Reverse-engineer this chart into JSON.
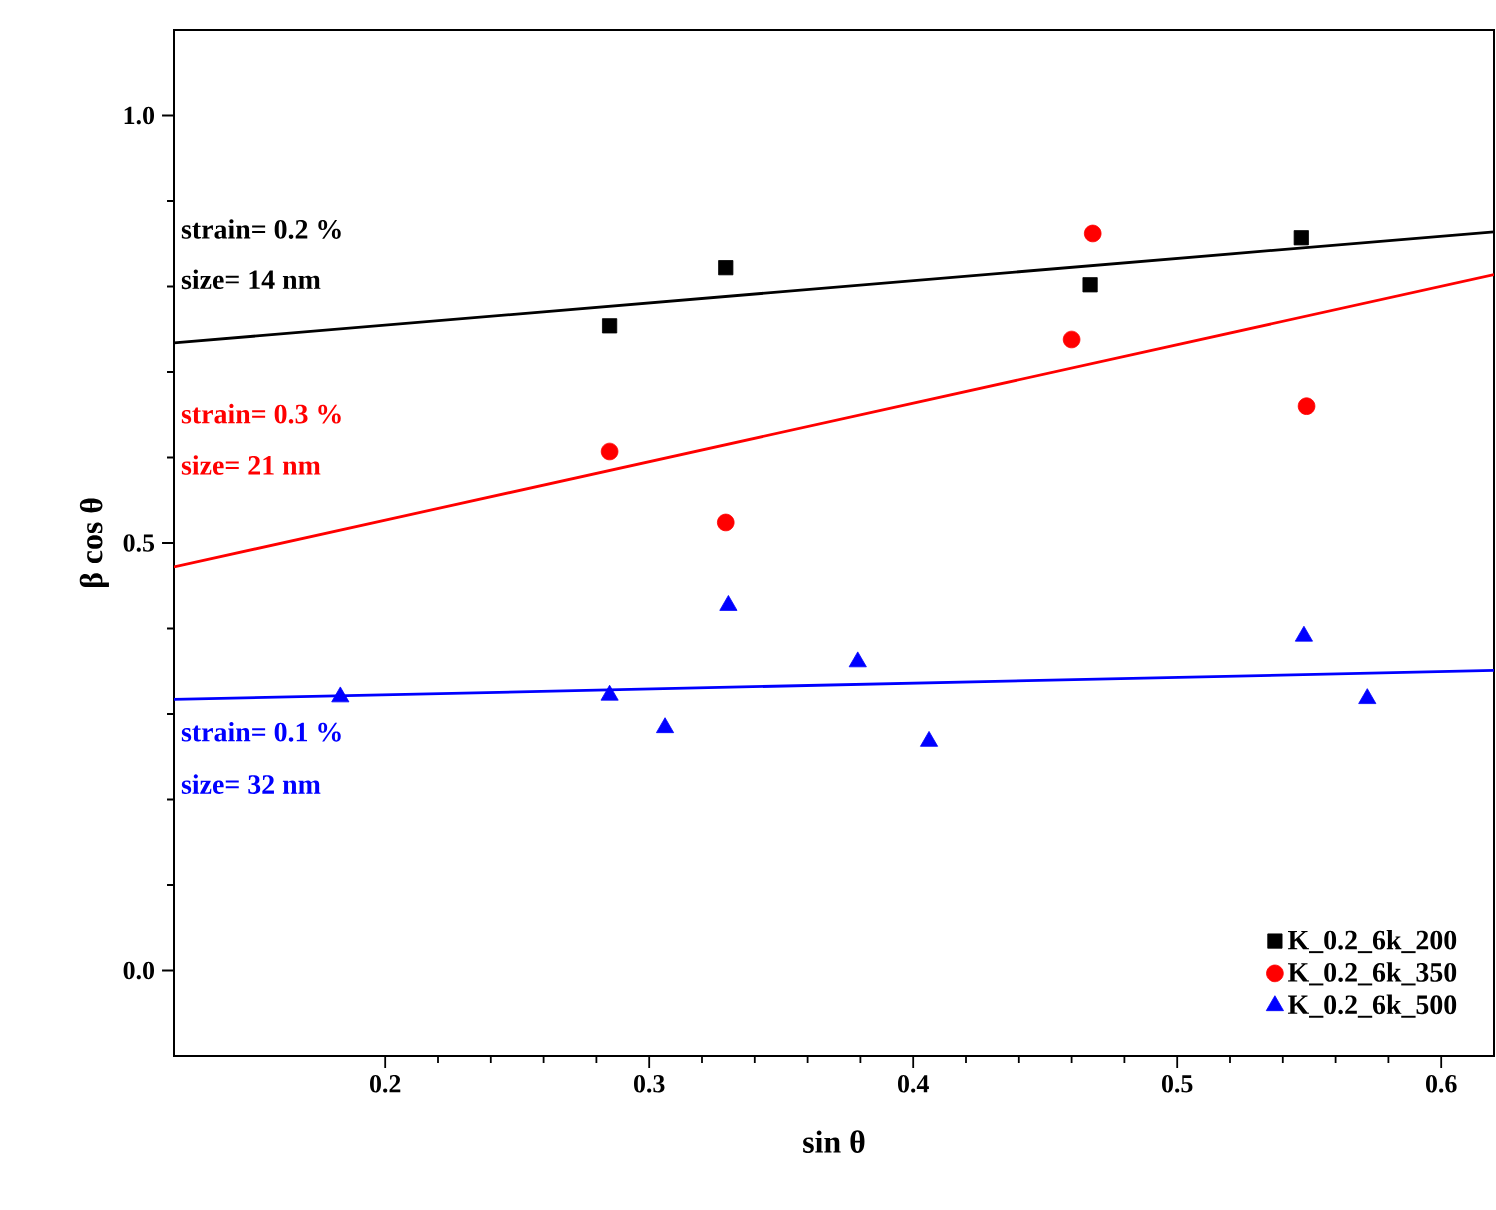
{
  "chart_data": {
    "type": "scatter",
    "xlabel": "sin θ",
    "ylabel": "β cos θ",
    "xlim": [
      0.12,
      0.62
    ],
    "ylim": [
      -0.1,
      1.1
    ],
    "xticks": [
      0.2,
      0.3,
      0.4,
      0.5,
      0.6
    ],
    "yticks": [
      {
        "value": 0,
        "label": "0.0"
      },
      {
        "value": 0.5,
        "label": "0.5"
      },
      {
        "value": 1,
        "label": "1.0"
      }
    ],
    "grid": false,
    "legend": "bottom right",
    "series": [
      {
        "name": "K_0.2_6k_200",
        "marker": "square",
        "color": "#000000",
        "x": [
          0.285,
          0.329,
          0.467,
          0.547
        ],
        "values": [
          0.754,
          0.822,
          0.802,
          0.857
        ]
      },
      {
        "name": "K_0.2_6k_350",
        "marker": "circle",
        "color": "#ff0000",
        "x": [
          0.285,
          0.329,
          0.46,
          0.468,
          0.549
        ],
        "values": [
          0.607,
          0.524,
          0.738,
          0.862,
          0.66
        ]
      },
      {
        "name": "K_0.2_6k_500",
        "marker": "triangle",
        "color": "#0000ff",
        "x": [
          0.183,
          0.285,
          0.306,
          0.33,
          0.379,
          0.406,
          0.548,
          0.572
        ],
        "values": [
          0.32,
          0.322,
          0.284,
          0.427,
          0.361,
          0.268,
          0.391,
          0.318
        ]
      },
      {
        "type": "line",
        "marker": "none",
        "line_style": "solid",
        "color": "#000000",
        "x": [
          0.12,
          0.62
        ],
        "values": [
          0.734,
          0.864
        ]
      },
      {
        "type": "line",
        "marker": "none",
        "line_style": "solid",
        "color": "#ff0000",
        "x": [
          0.12,
          0.62
        ],
        "values": [
          0.472,
          0.814
        ]
      },
      {
        "type": "line",
        "marker": "none",
        "line_style": "solid",
        "color": "#0000ff",
        "x": [
          0.12,
          0.62
        ],
        "values": [
          0.317,
          0.351
        ]
      }
    ],
    "annotations": [
      "strain= 0.2 %",
      "size= 14 nm",
      "strain= 0.3 %",
      "size= 21 nm",
      "strain= 0.1 %",
      "size= 32 nm"
    ]
  }
}
